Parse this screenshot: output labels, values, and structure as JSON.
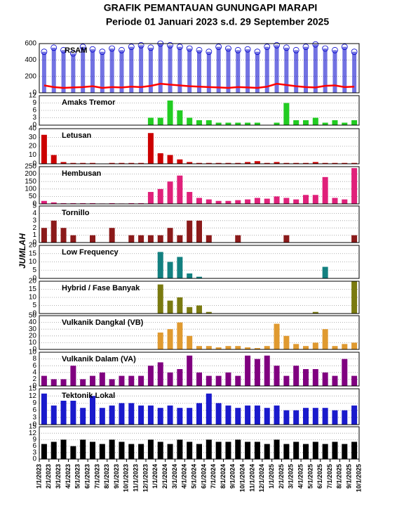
{
  "header": {
    "title": "GRAFIK PEMANTAUAN GUNUNGAPI MARAPI",
    "subtitle": "Periode 01 Januari 2023 s.d. 29 September 2025"
  },
  "axis": {
    "ylabel": "JUMLAH",
    "xticks": [
      "1/1/2023",
      "2/1/2023",
      "3/1/2023",
      "4/1/2023",
      "5/1/2023",
      "6/1/2023",
      "7/1/2023",
      "8/1/2023",
      "9/1/2023",
      "10/1/2023",
      "11/1/2023",
      "12/1/2023",
      "1/1/2024",
      "2/1/2024",
      "3/1/2024",
      "4/1/2024",
      "5/1/2024",
      "6/1/2024",
      "7/1/2024",
      "8/1/2024",
      "9/1/2024",
      "10/1/2024",
      "11/1/2024",
      "12/1/2024",
      "1/1/2025",
      "2/1/2025",
      "3/1/2025",
      "4/1/2025",
      "5/1/2025",
      "6/1/2025",
      "7/1/2025",
      "8/1/2025",
      "9/1/2025",
      "10/1/2025"
    ]
  },
  "chart_data": [
    {
      "type": "line",
      "title": "RSAM",
      "color": "#ff0000",
      "scatter_color": "#0000cc",
      "ylim": [
        0,
        600
      ],
      "yticks": [
        0,
        200,
        400,
        600
      ],
      "values": [
        90,
        70,
        60,
        65,
        70,
        80,
        60,
        70,
        65,
        75,
        70,
        85,
        110,
        100,
        90,
        80,
        75,
        70,
        65,
        60,
        70,
        65,
        60,
        75,
        110,
        95,
        80,
        70,
        65,
        85,
        90,
        70,
        75
      ],
      "scatter": [
        500,
        550,
        520,
        480,
        560,
        530,
        500,
        540,
        520,
        560,
        580,
        550,
        600,
        580,
        560,
        540,
        520,
        500,
        560,
        540,
        520,
        530,
        500,
        560,
        580,
        550,
        520,
        560,
        590,
        540,
        520,
        560,
        500
      ]
    },
    {
      "type": "bar",
      "title": "Amaks Tremor",
      "color": "#22cc22",
      "ylim": [
        0,
        12
      ],
      "yticks": [
        0,
        3,
        6,
        9,
        12
      ],
      "values": [
        0,
        0,
        0,
        0,
        0,
        0,
        0,
        0,
        0,
        0,
        0,
        3,
        3,
        10,
        6,
        3,
        2,
        2,
        1,
        1,
        1,
        1,
        1,
        0,
        1,
        9,
        2,
        2,
        3,
        1,
        2,
        1,
        2
      ]
    },
    {
      "type": "bar",
      "title": "Letusan",
      "color": "#cc0000",
      "ylim": [
        0,
        40
      ],
      "yticks": [
        0,
        10,
        20,
        30,
        40
      ],
      "values": [
        33,
        10,
        2,
        1,
        1,
        1,
        0,
        1,
        1,
        1,
        1,
        35,
        12,
        10,
        5,
        2,
        1,
        1,
        1,
        1,
        1,
        2,
        3,
        1,
        2,
        1,
        1,
        1,
        2,
        1,
        1,
        1,
        1
      ]
    },
    {
      "type": "bar",
      "title": "Hembusan",
      "color": "#e0207a",
      "ylim": [
        0,
        250
      ],
      "yticks": [
        0,
        50,
        100,
        150,
        200,
        250
      ],
      "values": [
        20,
        10,
        5,
        5,
        5,
        5,
        3,
        5,
        3,
        5,
        5,
        80,
        100,
        150,
        190,
        80,
        40,
        30,
        20,
        20,
        25,
        30,
        40,
        35,
        50,
        40,
        30,
        60,
        60,
        180,
        40,
        30,
        240
      ]
    },
    {
      "type": "bar",
      "title": "Tornillo",
      "color": "#8b1a1a",
      "ylim": [
        0,
        5
      ],
      "yticks": [
        0,
        1,
        2,
        3,
        4,
        5
      ],
      "values": [
        2,
        3,
        2,
        1,
        0,
        1,
        0,
        2,
        0,
        1,
        1,
        1,
        1,
        2,
        1,
        3,
        3,
        1,
        0,
        0,
        1,
        0,
        0,
        0,
        0,
        1,
        0,
        0,
        0,
        0,
        0,
        0,
        1
      ]
    },
    {
      "type": "bar",
      "title": "Low Frequency",
      "color": "#138080",
      "ylim": [
        0,
        20
      ],
      "yticks": [
        0,
        5,
        10,
        15,
        20
      ],
      "values": [
        0,
        0,
        0,
        0,
        0,
        0,
        0,
        0,
        0,
        0,
        0,
        0,
        16,
        10,
        13,
        3,
        1,
        0,
        0,
        0,
        0,
        0,
        0,
        0,
        0,
        0,
        0,
        0,
        0,
        7,
        0,
        0,
        0
      ]
    },
    {
      "type": "bar",
      "title": "Hybrid / Fase Banyak",
      "color": "#7a7a10",
      "ylim": [
        0,
        20
      ],
      "yticks": [
        0,
        5,
        10,
        15,
        20
      ],
      "values": [
        0,
        0,
        0,
        0,
        0,
        0,
        0,
        0,
        0,
        0,
        0,
        0,
        18,
        8,
        10,
        4,
        5,
        1,
        0,
        0,
        0,
        0,
        0,
        0,
        0,
        0,
        0,
        0,
        1,
        0,
        0,
        0,
        20
      ]
    },
    {
      "type": "bar",
      "title": "Vulkanik Dangkal (VB)",
      "color": "#e09a30",
      "ylim": [
        0,
        50
      ],
      "yticks": [
        0,
        10,
        20,
        30,
        40,
        50
      ],
      "values": [
        0,
        0,
        0,
        0,
        0,
        0,
        0,
        0,
        0,
        0,
        0,
        0,
        25,
        30,
        40,
        20,
        5,
        5,
        3,
        5,
        5,
        3,
        2,
        5,
        38,
        20,
        8,
        5,
        10,
        30,
        5,
        8,
        10
      ]
    },
    {
      "type": "bar",
      "title": "Vulkanik Dalam (VA)",
      "color": "#800080",
      "ylim": [
        0,
        10
      ],
      "yticks": [
        0,
        2,
        4,
        6,
        8,
        10
      ],
      "values": [
        3,
        2,
        2,
        6,
        2,
        3,
        4,
        2,
        3,
        3,
        3,
        6,
        7,
        4,
        5,
        9,
        4,
        3,
        3,
        4,
        3,
        9,
        8,
        9,
        6,
        3,
        6,
        5,
        5,
        4,
        3,
        8,
        3
      ]
    },
    {
      "type": "bar",
      "title": "Tektonik Lokal",
      "color": "#1a1acc",
      "ylim": [
        0,
        15
      ],
      "yticks": [
        0,
        3,
        6,
        9,
        12,
        15
      ],
      "values": [
        13,
        8,
        10,
        10,
        7,
        12,
        7,
        8,
        9,
        9,
        8,
        8,
        7,
        8,
        7,
        7,
        9,
        13,
        9,
        8,
        7,
        8,
        8,
        7,
        8,
        6,
        6,
        7,
        7,
        7,
        6,
        6,
        8
      ]
    },
    {
      "type": "bar",
      "color": "#000000",
      "ylim": [
        0,
        15
      ],
      "yticks": [
        0,
        3,
        6,
        9,
        12,
        15
      ],
      "values": [
        7,
        8,
        9,
        6,
        9,
        8,
        7,
        9,
        8,
        7,
        7,
        9,
        8,
        7,
        9,
        8,
        7,
        9,
        8,
        8,
        9,
        8,
        8,
        7,
        9,
        7,
        8,
        7,
        8,
        7,
        8,
        7,
        8
      ]
    }
  ]
}
